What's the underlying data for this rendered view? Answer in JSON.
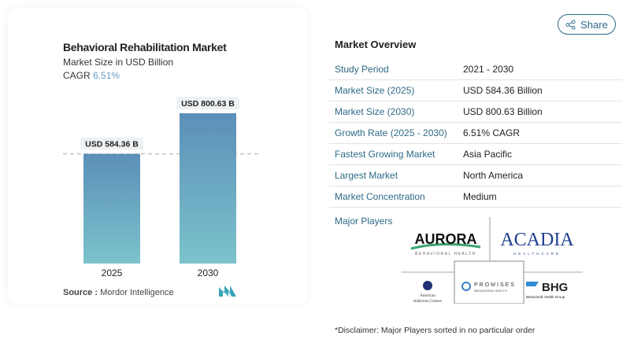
{
  "share_label": "Share",
  "chart_data": {
    "type": "bar",
    "title": "Behavioral Rehabilitation Market",
    "subtitle": "Market Size in USD Billion",
    "cagr_label": "CAGR",
    "cagr_value": "6.51%",
    "categories": [
      "2025",
      "2030"
    ],
    "values": [
      584.36,
      800.63
    ],
    "data_labels": [
      "USD 584.36 B",
      "USD 800.63 B"
    ],
    "ylim": [
      0,
      880
    ],
    "colors": {
      "top": "#5b8fb8",
      "bottom": "#7cc3cc"
    }
  },
  "source_label": "Source :",
  "source": "Mordor Intelligence",
  "overview": {
    "title": "Market Overview",
    "rows": [
      {
        "k": "Study Period",
        "v": "2021 - 2030"
      },
      {
        "k": "Market Size (2025)",
        "v": "USD 584.36 Billion"
      },
      {
        "k": "Market Size (2030)",
        "v": "USD 800.63 Billion"
      },
      {
        "k": "Growth Rate (2025 - 2030)",
        "v": "6.51% CAGR"
      },
      {
        "k": "Fastest Growing Market",
        "v": "Asia Pacific"
      },
      {
        "k": "Largest Market",
        "v": "North America"
      },
      {
        "k": "Market Concentration",
        "v": "Medium"
      }
    ]
  },
  "major_players_label": "Major Players",
  "players": [
    "AURORA",
    "BEHAVIORAL HEALTH",
    "ACADIA",
    "HEALTHCARE",
    "American Addiction Centers",
    "PROMISES",
    "BEHAVIORAL HEALTH",
    "BHG",
    "Behavioral Health Group"
  ],
  "disclaimer": "*Disclaimer: Major Players sorted in no particular order"
}
